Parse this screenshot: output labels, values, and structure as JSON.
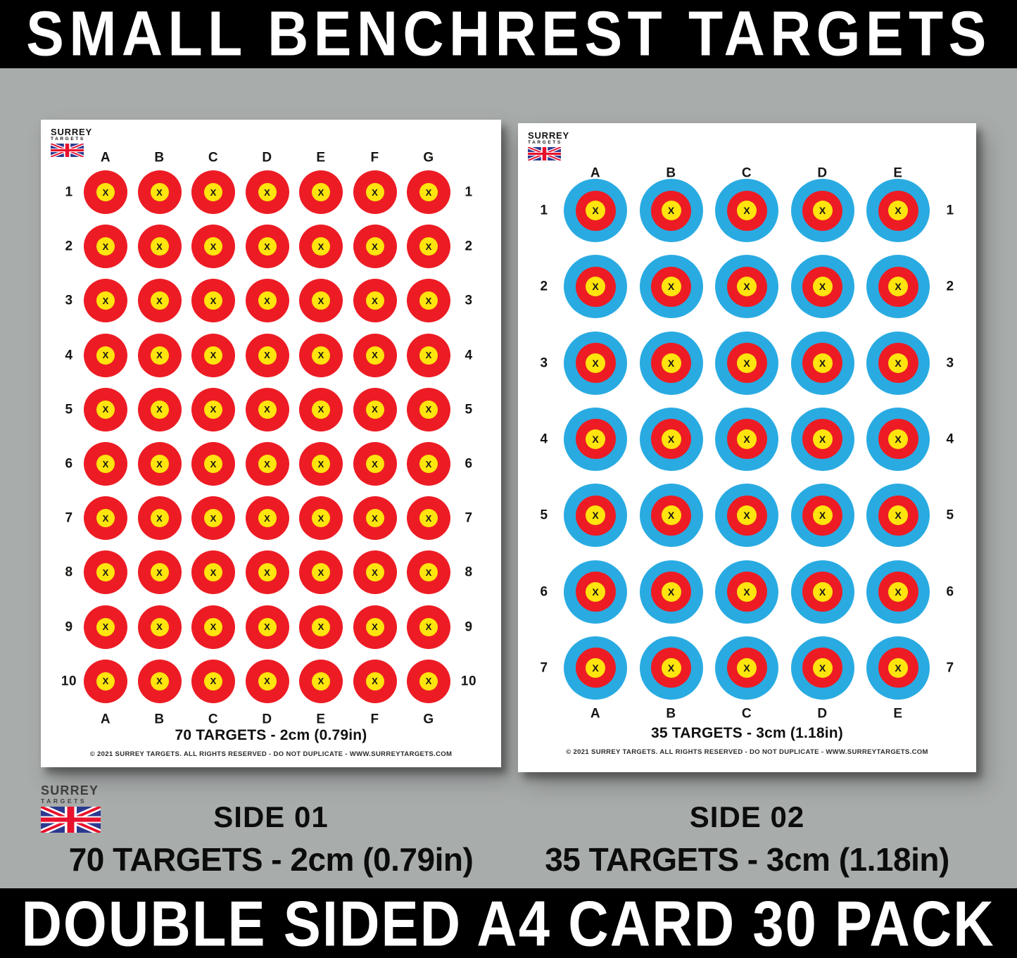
{
  "banner_top": {
    "text": "SMALL BENCHREST TARGETS"
  },
  "banner_bottom": {
    "text": "DOUBLE SIDED A4 CARD 30 PACK"
  },
  "brand": {
    "name": "SURREY",
    "sub": "TARGETS",
    "flag_icon": "union-jack"
  },
  "cards": [
    {
      "side": "01",
      "columns": [
        "A",
        "B",
        "C",
        "D",
        "E",
        "F",
        "G"
      ],
      "rows": [
        "1",
        "2",
        "3",
        "4",
        "5",
        "6",
        "7",
        "8",
        "9",
        "10"
      ],
      "style": "red",
      "marker": "X",
      "caption": "70 TARGETS - 2cm (0.79in)",
      "copyright": "© 2021 SURREY TARGETS. ALL RIGHTS RESERVED - DO NOT DUPLICATE - WWW.SURREYTARGETS.COM"
    },
    {
      "side": "02",
      "columns": [
        "A",
        "B",
        "C",
        "D",
        "E"
      ],
      "rows": [
        "1",
        "2",
        "3",
        "4",
        "5",
        "6",
        "7"
      ],
      "style": "blue",
      "marker": "X",
      "caption": "35 TARGETS - 3cm (1.18in)",
      "copyright": "© 2021 SURREY TARGETS. ALL RIGHTS RESERVED - DO NOT DUPLICATE - WWW.SURREYTARGETS.COM"
    }
  ],
  "labels": [
    {
      "side": "SIDE 01",
      "desc": "70 TARGETS - 2cm (0.79in)"
    },
    {
      "side": "SIDE 02",
      "desc": "35 TARGETS - 3cm (1.18in)"
    }
  ],
  "colors": {
    "target_red": "#ed1c24",
    "target_yellow": "#ffe40d",
    "target_blue": "#29abe2",
    "background_gray": "#a8acab",
    "banner_black": "#000000",
    "banner_text_white": "#ffffff",
    "flag_blue": "#2b3990",
    "flag_red": "#e8112d"
  }
}
